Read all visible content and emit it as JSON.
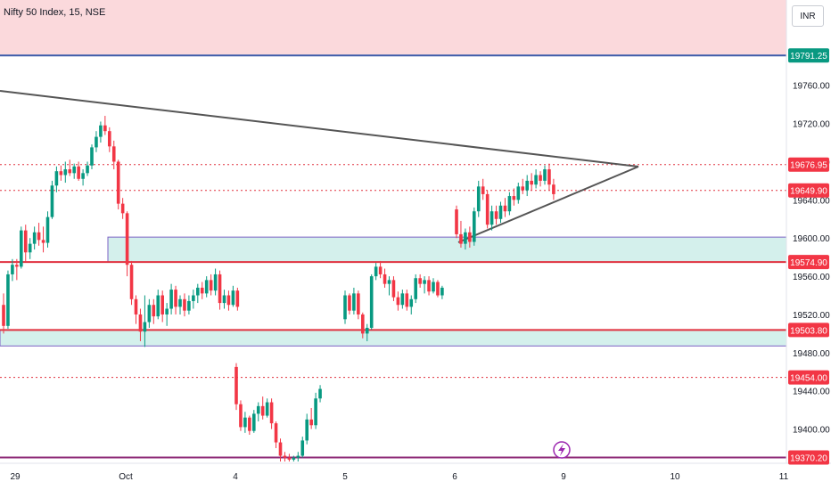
{
  "header": {
    "title": "Nifty 50 Index, 15, NSE",
    "currency": "INR"
  },
  "colors": {
    "up": "#089981",
    "down": "#f23645",
    "zone_fill": "#d4f0ec",
    "zone_border": "#7b61c4",
    "top_band": "#fbd9dc",
    "top_line": "#3d5aa8",
    "level_line": "#e0303f",
    "dotted_line": "#e0303f",
    "trendline": "#555555",
    "bottom_line": "#8e2a77",
    "badge_green": "#089981",
    "badge_red": "#f23645"
  },
  "chart_data": {
    "type": "candlestick",
    "ylim": [
      19366,
      19812
    ],
    "y_ticks": [
      19400,
      19440,
      19480,
      19520,
      19560,
      19600,
      19640,
      19680,
      19720,
      19760
    ],
    "y_tick_labels": [
      "19400.00",
      "19440.00",
      "19480.00",
      "19520.00",
      "19560.00",
      "19600.00",
      "19640.00",
      "19680.00",
      "19720.00",
      "19760.00"
    ],
    "x_labels": [
      "29",
      "Oct",
      "4",
      "5",
      "6",
      "9",
      "10",
      "11"
    ],
    "price_badges": [
      {
        "value": 19791.25,
        "label": "19791.25",
        "color": "green"
      },
      {
        "value": 19676.95,
        "label": "19676.95",
        "color": "red"
      },
      {
        "value": 19649.9,
        "label": "19649.90",
        "color": "red"
      },
      {
        "value": 19574.9,
        "label": "19574.90",
        "color": "red"
      },
      {
        "value": 19503.8,
        "label": "19503.80",
        "color": "red"
      },
      {
        "value": 19454.0,
        "label": "19454.00",
        "color": "red"
      },
      {
        "value": 19370.2,
        "label": "19370.20",
        "color": "red"
      }
    ],
    "zones": [
      {
        "from": 19574.9,
        "to": 19601
      },
      {
        "from": 19487,
        "to": 19503.8
      }
    ],
    "dotted_levels": [
      19676.95,
      19649.9,
      19454.0
    ],
    "solid_levels": [
      19574.9,
      19503.8
    ],
    "top_level": 19791.25,
    "bottom_level": 19370.2,
    "candles_note": "15-minute OHLC, read from chart",
    "candles": [
      [
        19530,
        19542,
        19500,
        19508
      ],
      [
        19508,
        19566,
        19505,
        19562
      ],
      [
        19562,
        19578,
        19555,
        19572
      ],
      [
        19572,
        19578,
        19556,
        19570
      ],
      [
        19570,
        19612,
        19568,
        19608
      ],
      [
        19608,
        19614,
        19575,
        19585
      ],
      [
        19585,
        19600,
        19578,
        19594
      ],
      [
        19594,
        19612,
        19588,
        19606
      ],
      [
        19606,
        19616,
        19592,
        19598
      ],
      [
        19598,
        19612,
        19585,
        19595
      ],
      [
        19595,
        19628,
        19590,
        19622
      ],
      [
        19622,
        19660,
        19620,
        19655
      ],
      [
        19655,
        19675,
        19648,
        19670
      ],
      [
        19670,
        19676,
        19660,
        19666
      ],
      [
        19666,
        19680,
        19658,
        19672
      ],
      [
        19672,
        19682,
        19665,
        19668
      ],
      [
        19668,
        19678,
        19662,
        19675
      ],
      [
        19675,
        19680,
        19660,
        19662
      ],
      [
        19662,
        19672,
        19655,
        19668
      ],
      [
        19668,
        19680,
        19665,
        19676
      ],
      [
        19676,
        19698,
        19672,
        19695
      ],
      [
        19695,
        19712,
        19690,
        19706
      ],
      [
        19706,
        19722,
        19700,
        19718
      ],
      [
        19718,
        19728,
        19708,
        19712
      ],
      [
        19712,
        19716,
        19690,
        19696
      ],
      [
        19696,
        19702,
        19672,
        19680
      ],
      [
        19680,
        19682,
        19630,
        19636
      ],
      [
        19636,
        19642,
        19620,
        19626
      ],
      [
        19626,
        19628,
        19560,
        19572
      ],
      [
        19572,
        19576,
        19530,
        19536
      ],
      [
        19536,
        19540,
        19510,
        19520
      ],
      [
        19520,
        19526,
        19492,
        19502
      ],
      [
        19502,
        19540,
        19486,
        19512
      ],
      [
        19512,
        19536,
        19506,
        19530
      ],
      [
        19530,
        19536,
        19510,
        19518
      ],
      [
        19518,
        19546,
        19515,
        19540
      ],
      [
        19540,
        19545,
        19512,
        19520
      ],
      [
        19520,
        19532,
        19508,
        19526
      ],
      [
        19526,
        19552,
        19520,
        19546
      ],
      [
        19546,
        19550,
        19520,
        19528
      ],
      [
        19528,
        19540,
        19520,
        19536
      ],
      [
        19536,
        19542,
        19518,
        19524
      ],
      [
        19524,
        19540,
        19520,
        19534
      ],
      [
        19534,
        19546,
        19526,
        19540
      ],
      [
        19540,
        19552,
        19532,
        19548
      ],
      [
        19548,
        19554,
        19536,
        19542
      ],
      [
        19542,
        19560,
        19538,
        19556
      ],
      [
        19556,
        19562,
        19540,
        19545
      ],
      [
        19545,
        19568,
        19540,
        19562
      ],
      [
        19562,
        19566,
        19525,
        19532
      ],
      [
        19532,
        19546,
        19526,
        19540
      ],
      [
        19540,
        19545,
        19524,
        19530
      ],
      [
        19530,
        19550,
        19528,
        19545
      ],
      [
        19545,
        19548,
        19524,
        19528
      ],
      [
        19465,
        19469,
        19420,
        19426
      ],
      [
        19426,
        19430,
        19398,
        19402
      ],
      [
        19402,
        19418,
        19396,
        19412
      ],
      [
        19412,
        19414,
        19394,
        19398
      ],
      [
        19398,
        19420,
        19396,
        19416
      ],
      [
        19416,
        19428,
        19408,
        19424
      ],
      [
        19424,
        19434,
        19410,
        19414
      ],
      [
        19414,
        19432,
        19412,
        19428
      ],
      [
        19428,
        19432,
        19400,
        19406
      ],
      [
        19406,
        19408,
        19380,
        19386
      ],
      [
        19386,
        19390,
        19366,
        19372
      ],
      [
        19372,
        19376,
        19366,
        19370
      ],
      [
        19370,
        19374,
        19366,
        19368
      ],
      [
        19368,
        19372,
        19366,
        19370
      ],
      [
        19370,
        19376,
        19366,
        19372
      ],
      [
        19372,
        19392,
        19370,
        19388
      ],
      [
        19388,
        19416,
        19384,
        19410
      ],
      [
        19410,
        19422,
        19400,
        19404
      ],
      [
        19404,
        19438,
        19400,
        19432
      ],
      [
        19432,
        19446,
        19428,
        19442
      ],
      [
        19515,
        19545,
        19510,
        19540
      ],
      [
        19540,
        19542,
        19520,
        19524
      ],
      [
        19524,
        19548,
        19520,
        19542
      ],
      [
        19542,
        19545,
        19515,
        19520
      ],
      [
        19520,
        19522,
        19495,
        19500
      ],
      [
        19500,
        19510,
        19492,
        19506
      ],
      [
        19506,
        19562,
        19504,
        19560
      ],
      [
        19560,
        19574,
        19556,
        19570
      ],
      [
        19570,
        19576,
        19558,
        19562
      ],
      [
        19562,
        19568,
        19548,
        19552
      ],
      [
        19552,
        19560,
        19540,
        19556
      ],
      [
        19556,
        19560,
        19534,
        19538
      ],
      [
        19538,
        19544,
        19524,
        19530
      ],
      [
        19530,
        19546,
        19526,
        19542
      ],
      [
        19542,
        19546,
        19524,
        19528
      ],
      [
        19528,
        19540,
        19520,
        19536
      ],
      [
        19536,
        19562,
        19532,
        19558
      ],
      [
        19558,
        19562,
        19548,
        19552
      ],
      [
        19552,
        19560,
        19542,
        19556
      ],
      [
        19556,
        19560,
        19540,
        19544
      ],
      [
        19544,
        19558,
        19542,
        19554
      ],
      [
        19554,
        19556,
        19538,
        19540
      ],
      [
        19540,
        19550,
        19536,
        19548
      ],
      [
        19630,
        19634,
        19600,
        19604
      ],
      [
        19604,
        19618,
        19590,
        19594
      ],
      [
        19594,
        19610,
        19588,
        19606
      ],
      [
        19606,
        19612,
        19590,
        19596
      ],
      [
        19596,
        19632,
        19592,
        19628
      ],
      [
        19628,
        19660,
        19622,
        19654
      ],
      [
        19654,
        19662,
        19640,
        19646
      ],
      [
        19646,
        19650,
        19610,
        19614
      ],
      [
        19614,
        19634,
        19608,
        19628
      ],
      [
        19628,
        19634,
        19614,
        19620
      ],
      [
        19620,
        19638,
        19616,
        19634
      ],
      [
        19634,
        19642,
        19622,
        19628
      ],
      [
        19628,
        19648,
        19624,
        19644
      ],
      [
        19644,
        19652,
        19634,
        19640
      ],
      [
        19640,
        19658,
        19636,
        19654
      ],
      [
        19654,
        19662,
        19646,
        19650
      ],
      [
        19650,
        19666,
        19644,
        19660
      ],
      [
        19660,
        19668,
        19650,
        19656
      ],
      [
        19656,
        19672,
        19652,
        19666
      ],
      [
        19666,
        19670,
        19654,
        19660
      ],
      [
        19660,
        19676,
        19656,
        19672
      ],
      [
        19672,
        19678,
        19650,
        19656
      ],
      [
        19656,
        19662,
        19640,
        19646
      ]
    ]
  }
}
